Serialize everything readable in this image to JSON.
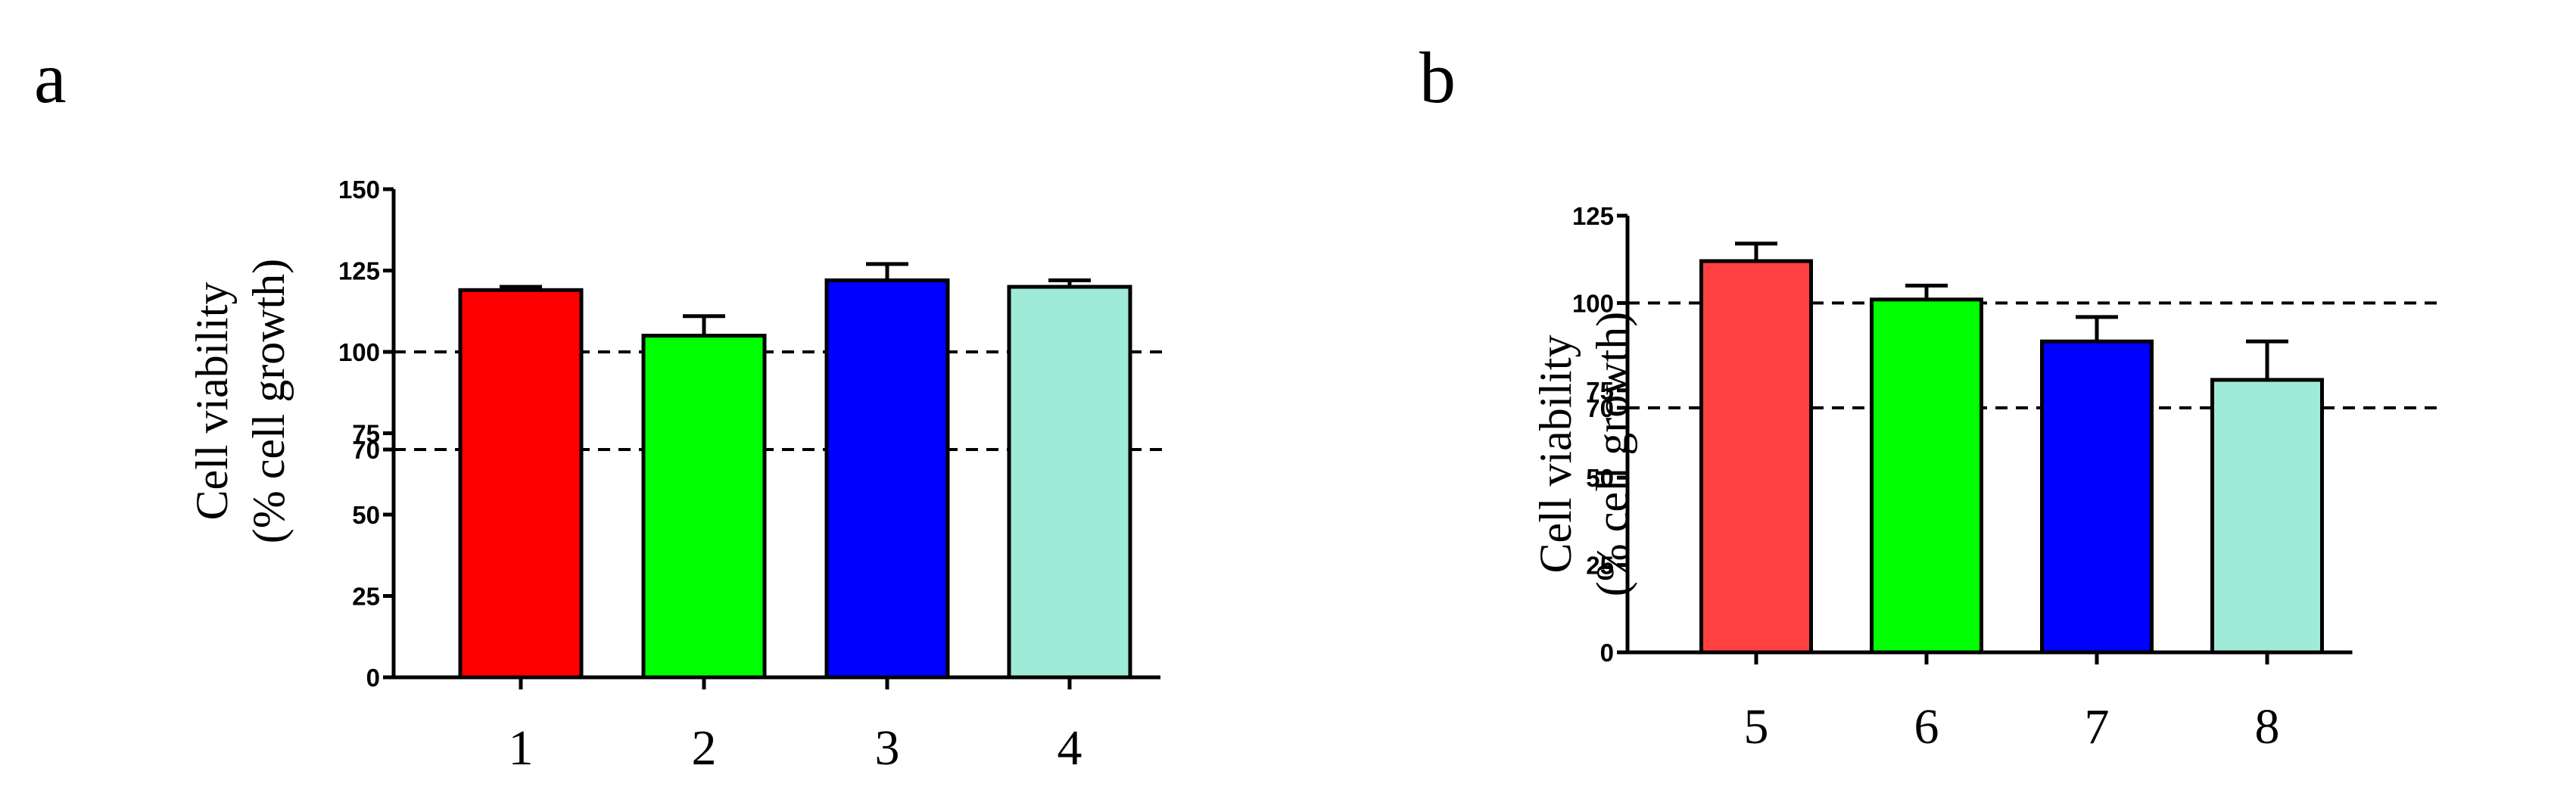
{
  "chart_data": [
    {
      "type": "bar",
      "panel_label": "a",
      "title": "",
      "xlabel": "",
      "ylabel_line1": "Cell viability",
      "ylabel_line2": "(% cell growth)",
      "categories": [
        "1",
        "2",
        "3",
        "4"
      ],
      "values": [
        119,
        105,
        122,
        120
      ],
      "errors": [
        1,
        6,
        5,
        2
      ],
      "colors": [
        "#ff0000",
        "#00ff00",
        "#0000ff",
        "#a0ead8"
      ],
      "ylim": [
        0,
        150
      ],
      "yticks": [
        {
          "value": 0,
          "label": "0"
        },
        {
          "value": 25,
          "label": "25"
        },
        {
          "value": 50,
          "label": "50"
        },
        {
          "value": 70,
          "label": "70"
        },
        {
          "value": 75,
          "label": "75"
        },
        {
          "value": 100,
          "label": "100"
        },
        {
          "value": 125,
          "label": "125"
        },
        {
          "value": 150,
          "label": "150"
        }
      ],
      "reference_lines": [
        100,
        70
      ],
      "grid": false,
      "legend": "none"
    },
    {
      "type": "bar",
      "panel_label": "b",
      "title": "",
      "xlabel": "",
      "ylabel_line1": "Cell viability",
      "ylabel_line2": "(% cell growth)",
      "categories": [
        "5",
        "6",
        "7",
        "8"
      ],
      "values": [
        112,
        101,
        89,
        78
      ],
      "errors": [
        5,
        4,
        7,
        11
      ],
      "colors": [
        "#ff4040",
        "#00ff00",
        "#0000ff",
        "#a0ead8"
      ],
      "ylim": [
        0,
        125
      ],
      "yticks": [
        {
          "value": 0,
          "label": "0"
        },
        {
          "value": 25,
          "label": "25"
        },
        {
          "value": 50,
          "label": "50"
        },
        {
          "value": 70,
          "label": "70"
        },
        {
          "value": 75,
          "label": "75"
        },
        {
          "value": 100,
          "label": "100"
        },
        {
          "value": 125,
          "label": "125"
        }
      ],
      "reference_lines": [
        100,
        70
      ],
      "grid": false,
      "legend": "none"
    }
  ]
}
